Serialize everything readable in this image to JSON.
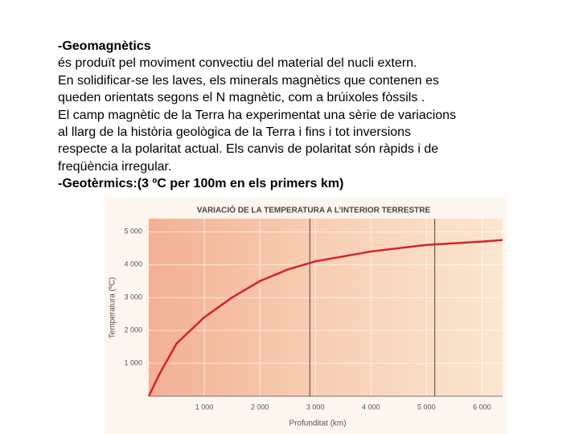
{
  "text": {
    "heading": "-Geomagnètics",
    "lines": [
      "és produït pel moviment convectiu del material del nucli extern.",
      "En solidificar-se les laves, els minerals magnètics que contenen es",
      "queden orientats segons el N magnètic, com a brúixoles fòssils .",
      "El camp magnètic de la Terra ha experimentat una sèrie de variacions",
      "al llarg de la història geològica de la Terra i fins i tot inversions",
      "respecte a la polaritat actual. Els canvis de polaritat són ràpids i de",
      "freqüència irregular."
    ],
    "heading2": "-Geotèrmics:(3 ºC per 100m en els primers km)"
  },
  "chart_data": {
    "type": "line",
    "title": "VARIACIÓ DE LA TEMPERATURA A L’INTERIOR TERRESTRE",
    "x_label": "Profunditat (km)",
    "y_label": "Temperatura (ºC)",
    "x": [
      0,
      200,
      500,
      1000,
      1500,
      2000,
      2500,
      3000,
      4000,
      5000,
      6000,
      6371
    ],
    "series": [
      {
        "color": "#d3232a",
        "values": [
          0,
          700,
          1600,
          2400,
          3000,
          3500,
          3850,
          4100,
          4400,
          4600,
          4700,
          4750
        ]
      }
    ],
    "boundaries": [
      2900,
      5150
    ],
    "xlim": [
      0,
      6371
    ],
    "ylim": [
      0,
      5400
    ],
    "xticks": [
      {
        "value": 1000,
        "label": "1 000"
      },
      {
        "value": 2000,
        "label": "2 000"
      },
      {
        "value": 3000,
        "label": "3 000"
      },
      {
        "value": 4000,
        "label": "4 000"
      },
      {
        "value": 5000,
        "label": "5 000"
      },
      {
        "value": 6000,
        "label": "6 000"
      }
    ],
    "yticks": [
      {
        "value": 1000,
        "label": "1 000"
      },
      {
        "value": 2000,
        "label": "2 000"
      },
      {
        "value": 3000,
        "label": "3 000"
      },
      {
        "value": 4000,
        "label": "4 000"
      },
      {
        "value": 5000,
        "label": "5 000"
      }
    ],
    "grid": true
  }
}
